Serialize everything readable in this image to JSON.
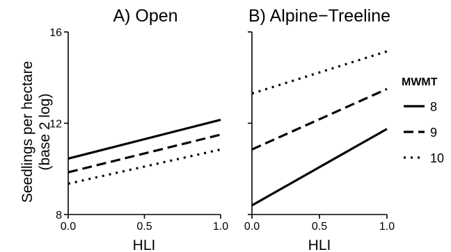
{
  "chart_data": {
    "type": "line",
    "ylabel": [
      "Seedlings per hectare",
      "(base 2 log)"
    ],
    "ylim": [
      8,
      16
    ],
    "yticks": [
      "8",
      "12",
      "16"
    ],
    "xlim": [
      0,
      1
    ],
    "xticks": [
      "0.0",
      "0.5",
      "1.0"
    ],
    "legend": {
      "title": "MWMT",
      "position": "right",
      "entries": [
        {
          "label": "8",
          "style": "solid"
        },
        {
          "label": "9",
          "style": "dashed"
        },
        {
          "label": "10",
          "style": "dotted"
        }
      ]
    },
    "panels": [
      {
        "title": "A) Open",
        "xlabel": "HLI",
        "series": [
          {
            "name": "8",
            "style": "solid",
            "x": [
              0,
              1
            ],
            "y": [
              10.45,
              12.15
            ]
          },
          {
            "name": "9",
            "style": "dashed",
            "x": [
              0,
              1
            ],
            "y": [
              9.85,
              11.5
            ]
          },
          {
            "name": "10",
            "style": "dotted",
            "x": [
              0,
              1
            ],
            "y": [
              9.35,
              10.85
            ]
          }
        ]
      },
      {
        "title": "B) Alpine−Treeline",
        "xlabel": "HLI",
        "series": [
          {
            "name": "8",
            "style": "solid",
            "x": [
              0,
              1
            ],
            "y": [
              8.4,
              11.75
            ]
          },
          {
            "name": "9",
            "style": "dashed",
            "x": [
              0,
              1
            ],
            "y": [
              10.85,
              13.5
            ]
          },
          {
            "name": "10",
            "style": "dotted",
            "x": [
              0,
              1
            ],
            "y": [
              13.3,
              15.15
            ]
          }
        ]
      }
    ]
  }
}
